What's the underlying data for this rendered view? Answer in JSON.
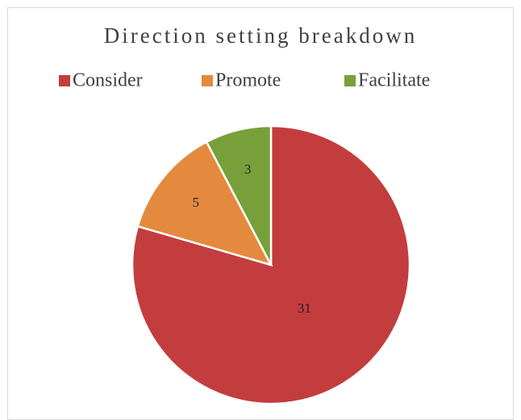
{
  "chart_data": {
    "type": "pie",
    "title": "Direction setting breakdown",
    "categories": [
      "Consider",
      "Promote",
      "Facilitate"
    ],
    "values": [
      31,
      5,
      3
    ],
    "colors": [
      "#c33d3e",
      "#e38a3f",
      "#77a03a"
    ]
  }
}
